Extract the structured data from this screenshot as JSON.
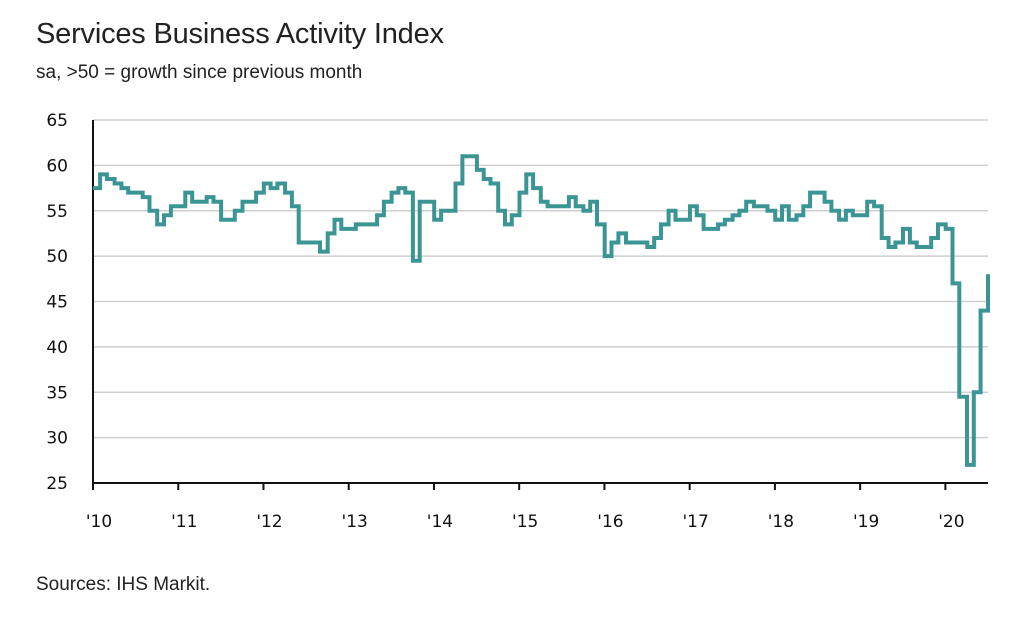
{
  "title": "Services Business Activity Index",
  "subtitle": "sa, >50 = growth since previous month",
  "source": "Sources: IHS Markit.",
  "colors": {
    "line": "#3b9595",
    "grid": "#cfcfcf",
    "axis": "#111111"
  },
  "chart_data": {
    "type": "line",
    "title": "Services Business Activity Index",
    "subtitle": "sa, >50 = growth since previous month",
    "xlabel": "",
    "ylabel": "",
    "ylim": [
      25,
      65
    ],
    "yticks": [
      25,
      30,
      35,
      40,
      45,
      50,
      55,
      60,
      65
    ],
    "xlim": [
      2010.0,
      2020.5
    ],
    "xticks": [
      {
        "x": 2010,
        "label": "'10"
      },
      {
        "x": 2011,
        "label": "'11"
      },
      {
        "x": 2012,
        "label": "'12"
      },
      {
        "x": 2013,
        "label": "'13"
      },
      {
        "x": 2014,
        "label": "'14"
      },
      {
        "x": 2015,
        "label": "'15"
      },
      {
        "x": 2016,
        "label": "'16"
      },
      {
        "x": 2017,
        "label": "'17"
      },
      {
        "x": 2018,
        "label": "'18"
      },
      {
        "x": 2019,
        "label": "'19"
      },
      {
        "x": 2020,
        "label": "'20"
      }
    ],
    "grid": true,
    "series": [
      {
        "x": [
          2010.0,
          2010.08,
          2010.17,
          2010.25,
          2010.33,
          2010.42,
          2010.5,
          2010.58,
          2010.67,
          2010.75,
          2010.83,
          2010.92,
          2011.0,
          2011.08,
          2011.17,
          2011.25,
          2011.33,
          2011.42,
          2011.5,
          2011.58,
          2011.67,
          2011.75,
          2011.83,
          2011.92,
          2012.0,
          2012.08,
          2012.17,
          2012.25,
          2012.33,
          2012.42,
          2012.5,
          2012.58,
          2012.67,
          2012.75,
          2012.83,
          2012.92,
          2013.0,
          2013.08,
          2013.17,
          2013.25,
          2013.33,
          2013.42,
          2013.5,
          2013.58,
          2013.67,
          2013.75,
          2013.83,
          2013.92,
          2014.0,
          2014.08,
          2014.17,
          2014.25,
          2014.33,
          2014.42,
          2014.5,
          2014.58,
          2014.67,
          2014.75,
          2014.83,
          2014.92,
          2015.0,
          2015.08,
          2015.17,
          2015.25,
          2015.33,
          2015.42,
          2015.5,
          2015.58,
          2015.67,
          2015.75,
          2015.83,
          2015.92,
          2016.0,
          2016.08,
          2016.17,
          2016.25,
          2016.33,
          2016.42,
          2016.5,
          2016.58,
          2016.67,
          2016.75,
          2016.83,
          2016.92,
          2017.0,
          2017.08,
          2017.17,
          2017.25,
          2017.33,
          2017.42,
          2017.5,
          2017.58,
          2017.67,
          2017.75,
          2017.83,
          2017.92,
          2018.0,
          2018.08,
          2018.17,
          2018.25,
          2018.33,
          2018.42,
          2018.5,
          2018.58,
          2018.67,
          2018.75,
          2018.83,
          2018.92,
          2019.0,
          2019.08,
          2019.17,
          2019.25,
          2019.33,
          2019.42,
          2019.5,
          2019.58,
          2019.67,
          2019.75,
          2019.83,
          2019.92,
          2020.0,
          2020.08,
          2020.17,
          2020.25,
          2020.33,
          2020.42,
          2020.5
        ],
        "y": [
          57.5,
          59.0,
          58.5,
          58.0,
          57.5,
          57.0,
          57.0,
          56.5,
          55.0,
          53.5,
          54.5,
          55.5,
          55.5,
          57.0,
          56.0,
          56.0,
          56.5,
          56.0,
          54.0,
          54.0,
          55.0,
          56.0,
          56.0,
          57.0,
          58.0,
          57.5,
          58.0,
          57.0,
          55.5,
          51.5,
          51.5,
          51.5,
          50.5,
          52.5,
          54.0,
          53.0,
          53.0,
          53.5,
          53.5,
          53.5,
          54.5,
          56.0,
          57.0,
          57.5,
          57.0,
          49.5,
          56.0,
          56.0,
          54.0,
          55.0,
          55.0,
          58.0,
          61.0,
          61.0,
          59.5,
          58.5,
          58.0,
          55.0,
          53.5,
          54.5,
          57.0,
          59.0,
          57.5,
          56.0,
          55.5,
          55.5,
          55.5,
          56.5,
          55.5,
          55.0,
          56.0,
          53.5,
          50.0,
          51.5,
          52.5,
          51.5,
          51.5,
          51.5,
          51.0,
          52.0,
          53.5,
          55.0,
          54.0,
          54.0,
          55.5,
          54.5,
          53.0,
          53.0,
          53.5,
          54.0,
          54.5,
          55.0,
          56.0,
          55.5,
          55.5,
          55.0,
          54.0,
          55.5,
          54.0,
          54.5,
          55.5,
          57.0,
          57.0,
          56.0,
          55.0,
          54.0,
          55.0,
          54.5,
          54.5,
          56.0,
          55.5,
          52.0,
          51.0,
          51.5,
          53.0,
          51.5,
          51.0,
          51.0,
          52.0,
          53.5,
          53.0,
          47.0,
          34.5,
          27.0,
          35.0,
          44.0,
          48.0
        ]
      }
    ]
  }
}
